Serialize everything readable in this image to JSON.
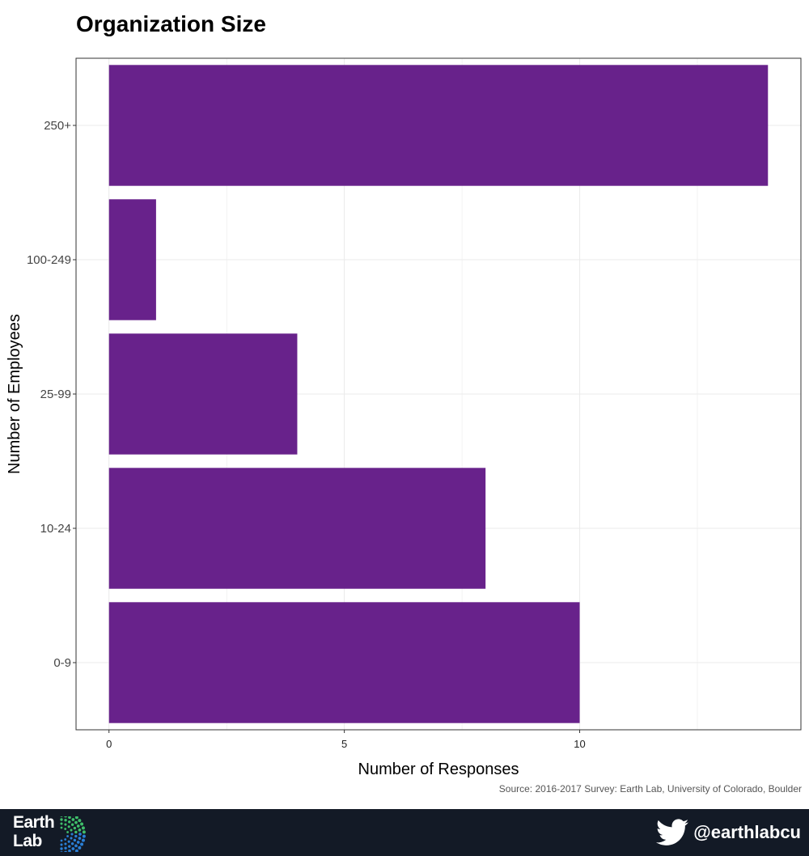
{
  "title": "Organization Size",
  "source": "Source: 2016-2017 Survey: Earth Lab, University of Colorado, Boulder",
  "footer": {
    "logo_line1": "Earth",
    "logo_line2": "Lab",
    "twitter_handle": "@earthlabcu",
    "logo_icon": "earth-lab-dots-logo",
    "social_icon": "twitter-bird-icon"
  },
  "colors": {
    "bar": "#68228b",
    "footer_bg": "#131a26",
    "grid": "#ebebeb"
  },
  "chart_data": {
    "type": "bar",
    "orientation": "horizontal",
    "categories": [
      "0-9",
      "10-24",
      "25-99",
      "100-249",
      "250+"
    ],
    "values": [
      10,
      8,
      4,
      1,
      14
    ],
    "xlabel": "Number of Responses",
    "ylabel": "Number of Employees",
    "xticks": [
      0,
      5,
      10
    ],
    "xlim": [
      -0.7,
      14.7
    ],
    "grid": true,
    "legend": "none"
  }
}
